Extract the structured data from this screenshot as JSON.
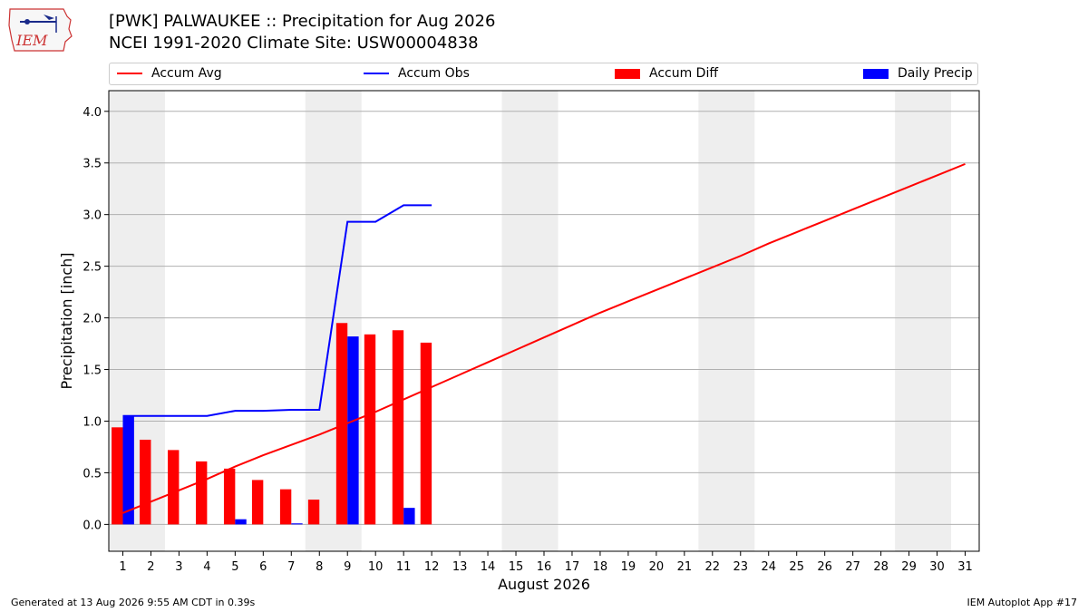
{
  "header": {
    "title_line1": "[PWK] PALWAUKEE :: Precipitation for Aug 2026",
    "title_line2": "NCEI 1991-2020 Climate Site: USW00004838",
    "logo_text": "IEM"
  },
  "footer": {
    "generated": "Generated at 13 Aug 2026 9:55 AM CDT in 0.39s",
    "app": "IEM Autoplot App #17"
  },
  "colors": {
    "accum_avg": "#ff0000",
    "accum_obs": "#0000ff",
    "accum_diff": "#ff0000",
    "daily_precip": "#0000ff",
    "weekend_band": "#eeeeee",
    "grid": "#b0b0b0"
  },
  "chart_data": {
    "type": "bar",
    "xlabel": "August 2026",
    "ylabel": "Precipitation [inch]",
    "x": [
      1,
      2,
      3,
      4,
      5,
      6,
      7,
      8,
      9,
      10,
      11,
      12,
      13,
      14,
      15,
      16,
      17,
      18,
      19,
      20,
      21,
      22,
      23,
      24,
      25,
      26,
      27,
      28,
      29,
      30,
      31
    ],
    "xlim": [
      0.5,
      31.5
    ],
    "ylim": [
      -0.26,
      4.2
    ],
    "yticks": [
      0.0,
      0.5,
      1.0,
      1.5,
      2.0,
      2.5,
      3.0,
      3.5,
      4.0
    ],
    "ytick_labels": [
      "0.0",
      "0.5",
      "1.0",
      "1.5",
      "2.0",
      "2.5",
      "3.0",
      "3.5",
      "4.0"
    ],
    "grid": "horizontal",
    "legend_position": "top",
    "weekend_bands": [
      [
        1,
        2
      ],
      [
        8,
        9
      ],
      [
        15,
        16
      ],
      [
        22,
        23
      ],
      [
        29,
        30
      ]
    ],
    "series": [
      {
        "name": "Accum Avg",
        "kind": "line",
        "x": [
          1,
          2,
          3,
          4,
          5,
          6,
          7,
          8,
          9,
          10,
          11,
          12,
          13,
          14,
          15,
          16,
          17,
          18,
          19,
          20,
          21,
          22,
          23,
          24,
          25,
          26,
          27,
          28,
          29,
          30,
          31
        ],
        "values": [
          0.11,
          0.22,
          0.33,
          0.44,
          0.56,
          0.67,
          0.77,
          0.87,
          0.98,
          1.09,
          1.21,
          1.33,
          1.45,
          1.57,
          1.69,
          1.81,
          1.93,
          2.05,
          2.16,
          2.27,
          2.38,
          2.49,
          2.6,
          2.72,
          2.83,
          2.94,
          3.05,
          3.16,
          3.27,
          3.38,
          3.49
        ]
      },
      {
        "name": "Accum Obs",
        "kind": "line",
        "x": [
          1,
          2,
          3,
          4,
          5,
          6,
          7,
          8,
          9,
          10,
          11,
          12
        ],
        "values": [
          1.05,
          1.05,
          1.05,
          1.05,
          1.1,
          1.1,
          1.11,
          1.11,
          2.93,
          2.93,
          3.09,
          3.09
        ]
      },
      {
        "name": "Accum Diff",
        "kind": "bar",
        "x": [
          1,
          2,
          3,
          4,
          5,
          6,
          7,
          8,
          9,
          10,
          11,
          12
        ],
        "values": [
          0.94,
          0.82,
          0.72,
          0.61,
          0.54,
          0.43,
          0.34,
          0.24,
          1.95,
          1.84,
          1.88,
          1.76
        ]
      },
      {
        "name": "Daily Precip",
        "kind": "bar",
        "x": [
          1,
          2,
          3,
          4,
          5,
          6,
          7,
          8,
          9,
          10,
          11,
          12
        ],
        "values": [
          1.05,
          0.0,
          0.0,
          0.0,
          0.05,
          0.0,
          0.01,
          0.0,
          1.82,
          0.0,
          0.16,
          0.0
        ]
      }
    ]
  }
}
